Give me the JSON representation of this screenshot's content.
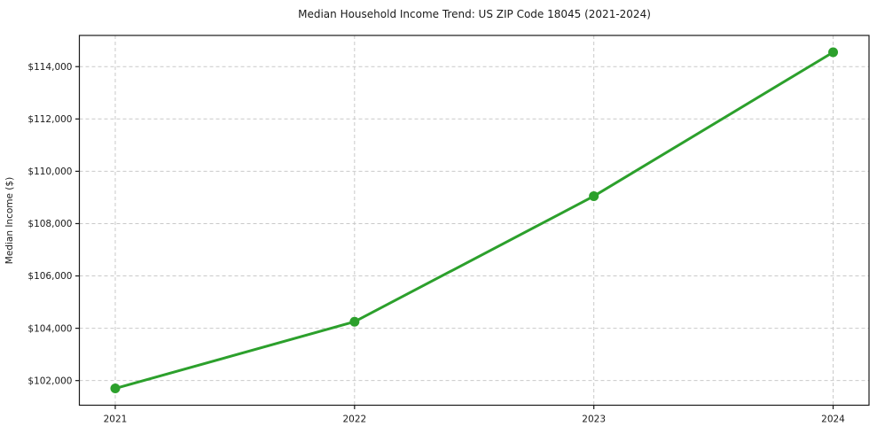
{
  "title": "Median Household Income Trend: US ZIP Code 18045 (2021-2024)",
  "chart_data": {
    "type": "line",
    "title": "Median Household Income Trend: US ZIP Code 18045 (2021-2024)",
    "xlabel": "",
    "ylabel": "Median Income ($)",
    "x": [
      2021,
      2022,
      2023,
      2024
    ],
    "series": [
      {
        "name": "Median Household Income",
        "values": [
          101700,
          104250,
          109050,
          114550
        ]
      }
    ],
    "xticks": [
      2021,
      2022,
      2023,
      2024
    ],
    "xtick_labels": [
      "2021",
      "2022",
      "2023",
      "2024"
    ],
    "yticks": [
      102000,
      104000,
      106000,
      108000,
      110000,
      112000,
      114000
    ],
    "ytick_labels": [
      "$102,000",
      "$104,000",
      "$106,000",
      "$108,000",
      "$110,000",
      "$112,000",
      "$114,000"
    ],
    "xlim": [
      2020.85,
      2024.15
    ],
    "ylim": [
      101058,
      115193
    ],
    "grid": true,
    "grid_style": "dashed",
    "legend": "none",
    "colors": {
      "line": "#2ca02c",
      "marker": "#2ca02c",
      "grid": "#c9c9c9",
      "spine": "#1a1a1a",
      "text": "#1a1a1a",
      "background": "#ffffff"
    }
  }
}
